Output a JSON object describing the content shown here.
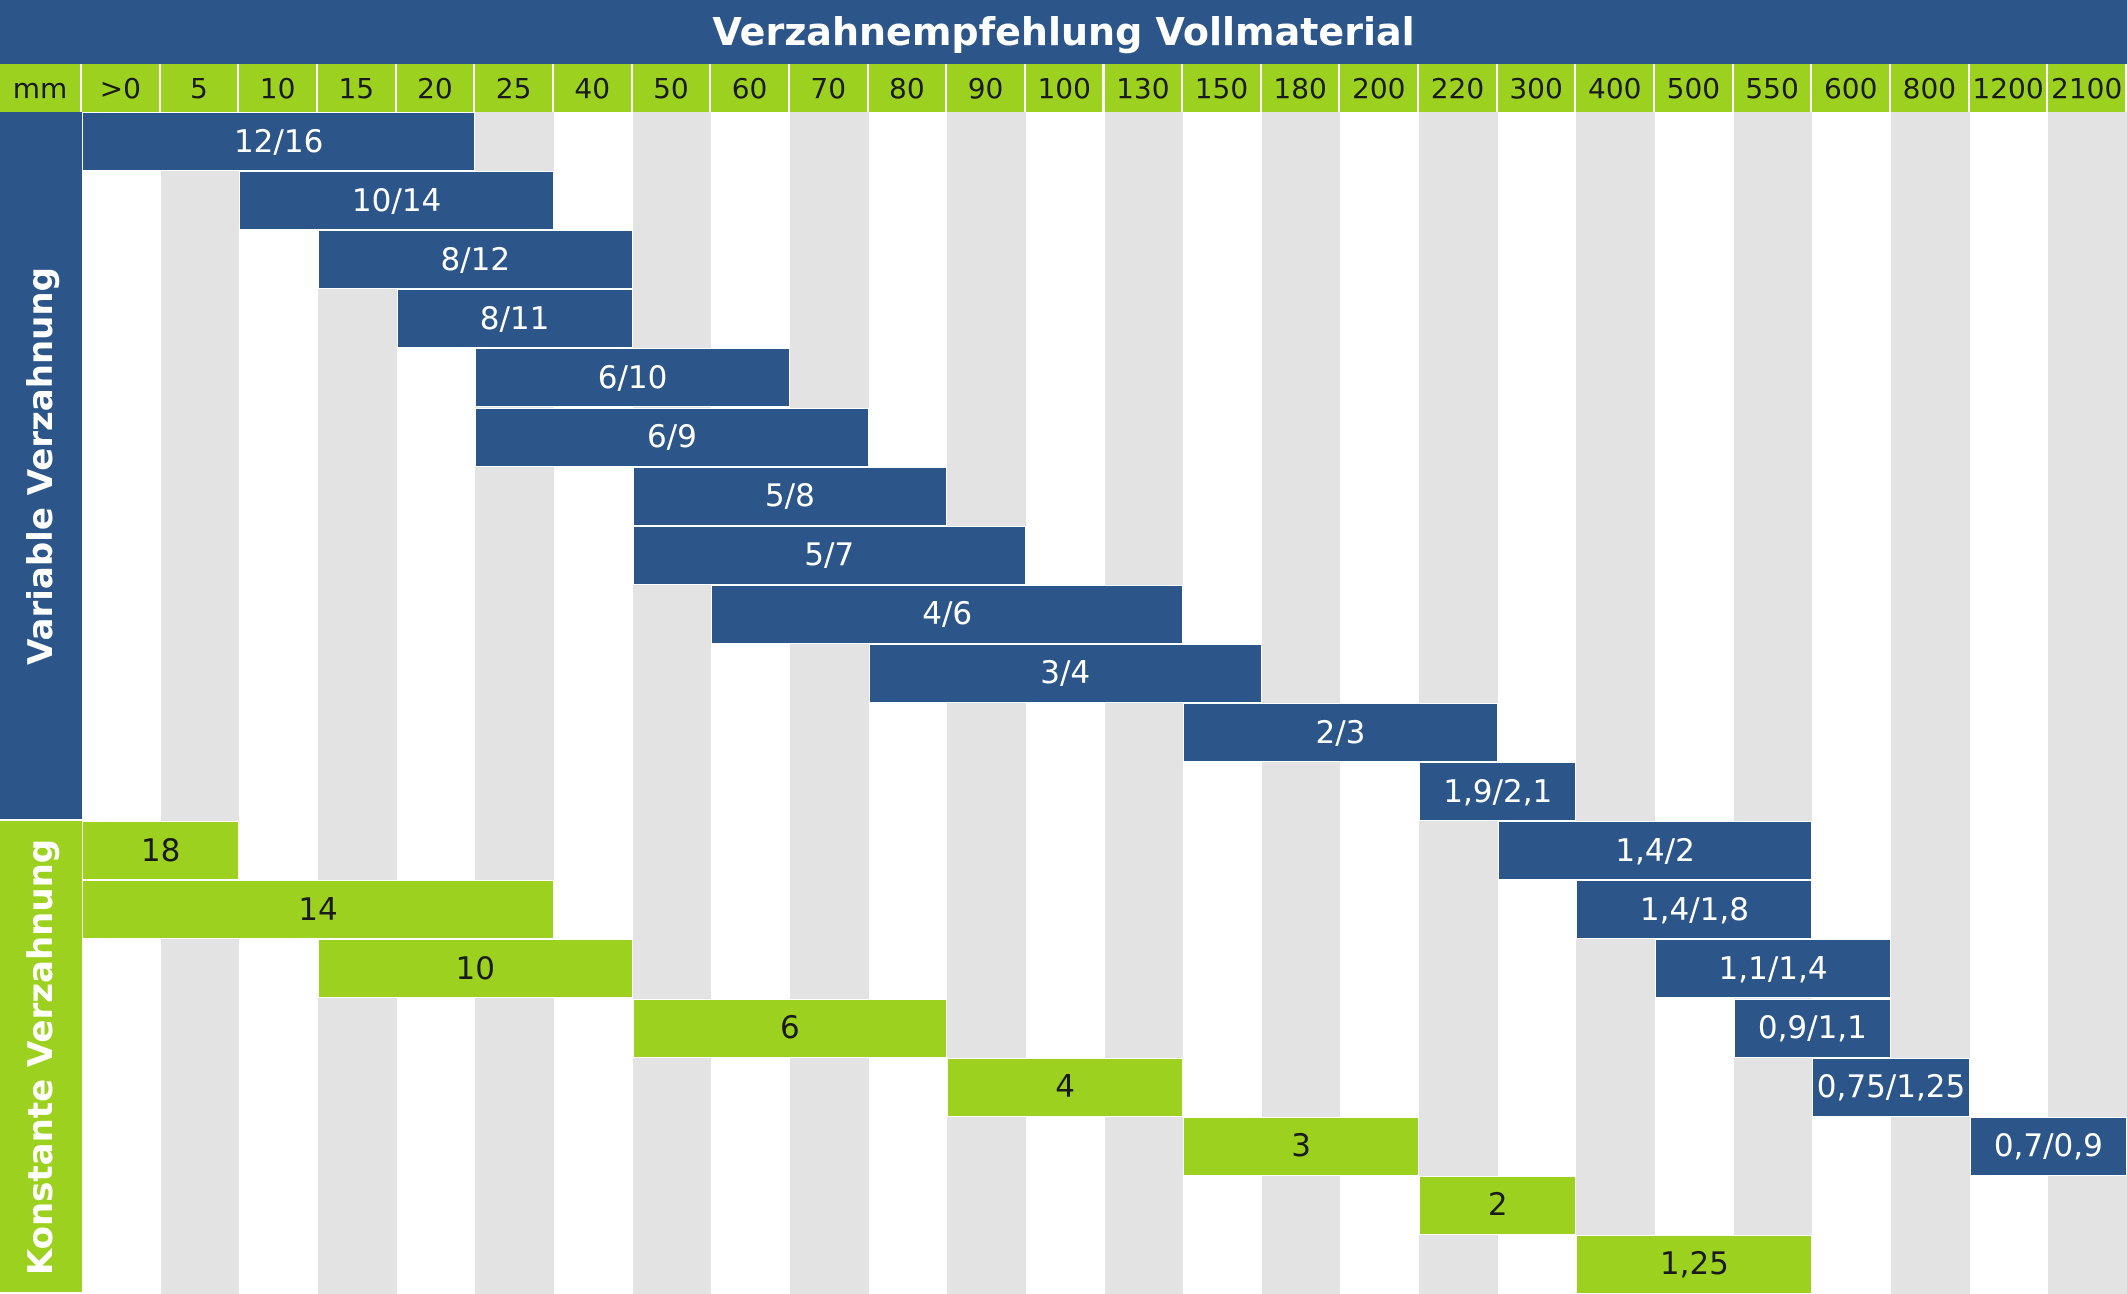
{
  "title": "Verzahnempfehlung Vollmaterial",
  "colors": {
    "variable": "#2c5689",
    "constant": "#9cd21f",
    "stripe": "#e3e3e3"
  },
  "header": {
    "unit_label": "mm",
    "columns": [
      ">0",
      "5",
      "10",
      "15",
      "20",
      "25",
      "40",
      "50",
      "60",
      "70",
      "80",
      "90",
      "100",
      "130",
      "150",
      "180",
      "200",
      "220",
      "300",
      "400",
      "500",
      "550",
      "600",
      "800",
      "1200",
      "2100"
    ]
  },
  "groups": {
    "variable_label": "Variable Verzahnung",
    "constant_label": "Konstante Verzahnung"
  },
  "chart_data": {
    "type": "table",
    "title": "Verzahnempfehlung Vollmaterial",
    "columns": [
      ">0",
      "5",
      "10",
      "15",
      "20",
      "25",
      "40",
      "50",
      "60",
      "70",
      "80",
      "90",
      "100",
      "130",
      "150",
      "180",
      "200",
      "220",
      "300",
      "400",
      "500",
      "550",
      "600",
      "800",
      "1200",
      "2100"
    ],
    "rows": [
      {
        "group": "variable",
        "label": "12/16",
        "from": ">0",
        "to": "20"
      },
      {
        "group": "variable",
        "label": "10/14",
        "from": "10",
        "to": "25"
      },
      {
        "group": "variable",
        "label": "8/12",
        "from": "15",
        "to": "40"
      },
      {
        "group": "variable",
        "label": "8/11",
        "from": "20",
        "to": "40"
      },
      {
        "group": "variable",
        "label": "6/10",
        "from": "25",
        "to": "60"
      },
      {
        "group": "variable",
        "label": "6/9",
        "from": "25",
        "to": "70"
      },
      {
        "group": "variable",
        "label": "5/8",
        "from": "50",
        "to": "80"
      },
      {
        "group": "variable",
        "label": "5/7",
        "from": "50",
        "to": "90"
      },
      {
        "group": "variable",
        "label": "4/6",
        "from": "60",
        "to": "130"
      },
      {
        "group": "variable",
        "label": "3/4",
        "from": "80",
        "to": "150"
      },
      {
        "group": "variable",
        "label": "2/3",
        "from": "150",
        "to": "220"
      },
      {
        "group": "variable",
        "label": "1,9/2,1",
        "from": "220",
        "to": "300"
      },
      {
        "group": "constant",
        "label": "18",
        "from": ">0",
        "to": "5"
      },
      {
        "group": "variable",
        "label": "1,4/2",
        "from": "300",
        "to": "550"
      },
      {
        "group": "constant",
        "label": "14",
        "from": ">0",
        "to": "25"
      },
      {
        "group": "variable",
        "label": "1,4/1,8",
        "from": "400",
        "to": "550"
      },
      {
        "group": "constant",
        "label": "10",
        "from": "15",
        "to": "40"
      },
      {
        "group": "variable",
        "label": "1,1/1,4",
        "from": "500",
        "to": "600"
      },
      {
        "group": "constant",
        "label": "6",
        "from": "50",
        "to": "80"
      },
      {
        "group": "variable",
        "label": "0,9/1,1",
        "from": "550",
        "to": "600"
      },
      {
        "group": "constant",
        "label": "4",
        "from": "90",
        "to": "130"
      },
      {
        "group": "variable",
        "label": "0,75/1,25",
        "from": "600",
        "to": "800"
      },
      {
        "group": "constant",
        "label": "3",
        "from": "150",
        "to": "200"
      },
      {
        "group": "variable",
        "label": "0,7/0,9",
        "from": "1200",
        "to": "2100"
      },
      {
        "group": "constant",
        "label": "2",
        "from": "220",
        "to": "300"
      },
      {
        "group": "constant",
        "label": "1,25",
        "from": "400",
        "to": "550"
      }
    ]
  }
}
